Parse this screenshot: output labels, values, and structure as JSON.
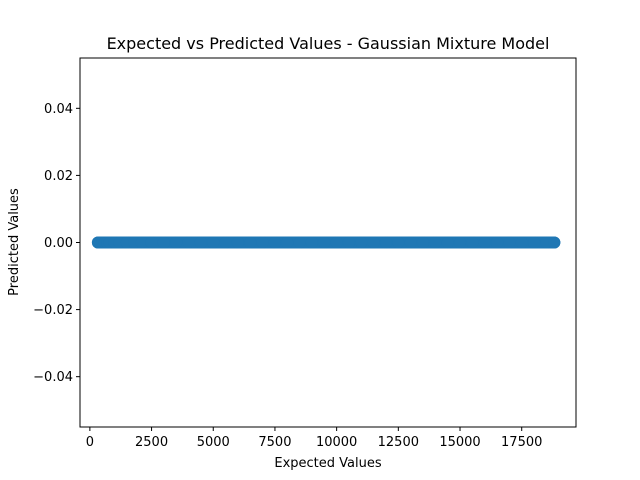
{
  "chart_data": {
    "type": "scatter",
    "title": "Expected vs Predicted Values - Gaussian Mixture Model",
    "xlabel": "Expected Values",
    "ylabel": "Predicted Values",
    "xlim": [
      -400,
      19700
    ],
    "ylim": [
      -0.055,
      0.055
    ],
    "xticks": [
      0,
      2500,
      5000,
      7500,
      10000,
      12500,
      15000,
      17500
    ],
    "xtick_labels": [
      "0",
      "2500",
      "5000",
      "7500",
      "10000",
      "12500",
      "15000",
      "17500"
    ],
    "yticks": [
      -0.04,
      -0.02,
      0.0,
      0.02,
      0.04
    ],
    "ytick_labels": [
      "−0.04",
      "−0.02",
      "0.00",
      "0.02",
      "0.04"
    ],
    "grid": false,
    "marker_color": "#1f77b4",
    "series": [
      {
        "x_range": [
          326,
          18823
        ],
        "y_constant": 0.0,
        "x": [
          326,
          400,
          500,
          600,
          700,
          800,
          1000,
          1200,
          1500,
          1800,
          2100,
          2500,
          3000,
          3500,
          4000,
          4500,
          5000,
          5500,
          6000,
          6500,
          7000,
          7500,
          8000,
          8500,
          9000,
          9500,
          10000,
          10500,
          11000,
          11500,
          12000,
          12500,
          13000,
          13500,
          14000,
          14500,
          15000,
          15500,
          16000,
          16500,
          17000,
          17500,
          18000,
          18500,
          18823
        ],
        "y": [
          0,
          0,
          0,
          0,
          0,
          0,
          0,
          0,
          0,
          0,
          0,
          0,
          0,
          0,
          0,
          0,
          0,
          0,
          0,
          0,
          0,
          0,
          0,
          0,
          0,
          0,
          0,
          0,
          0,
          0,
          0,
          0,
          0,
          0,
          0,
          0,
          0,
          0,
          0,
          0,
          0,
          0,
          0,
          0,
          0
        ]
      }
    ]
  }
}
